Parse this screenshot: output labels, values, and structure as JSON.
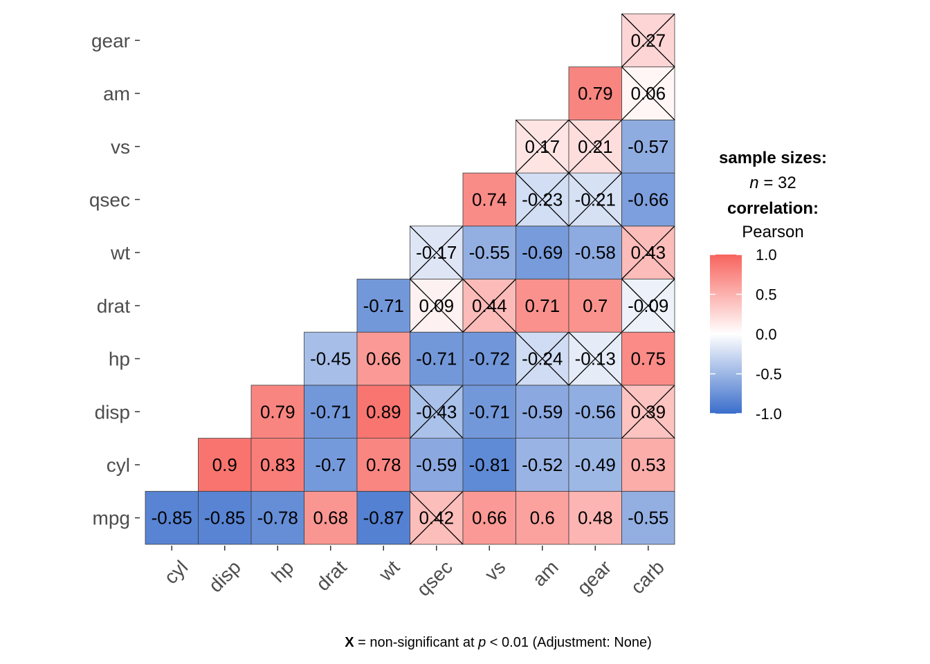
{
  "chart_data": {
    "type": "heatmap",
    "variables": [
      "mpg",
      "cyl",
      "disp",
      "hp",
      "drat",
      "wt",
      "qsec",
      "vs",
      "am",
      "gear",
      "carb"
    ],
    "x_categories": [
      "cyl",
      "disp",
      "hp",
      "drat",
      "wt",
      "qsec",
      "vs",
      "am",
      "gear",
      "carb"
    ],
    "y_categories": [
      "mpg",
      "cyl",
      "disp",
      "hp",
      "drat",
      "wt",
      "qsec",
      "vs",
      "am",
      "gear"
    ],
    "cells": [
      {
        "x": "cyl",
        "y": "mpg",
        "value": -0.85,
        "label": "-0.85",
        "significant": true
      },
      {
        "x": "disp",
        "y": "mpg",
        "value": -0.85,
        "label": "-0.85",
        "significant": true
      },
      {
        "x": "hp",
        "y": "mpg",
        "value": -0.78,
        "label": "-0.78",
        "significant": true
      },
      {
        "x": "drat",
        "y": "mpg",
        "value": 0.68,
        "label": "0.68",
        "significant": true
      },
      {
        "x": "wt",
        "y": "mpg",
        "value": -0.87,
        "label": "-0.87",
        "significant": true
      },
      {
        "x": "qsec",
        "y": "mpg",
        "value": 0.42,
        "label": "0.42",
        "significant": false
      },
      {
        "x": "vs",
        "y": "mpg",
        "value": 0.66,
        "label": "0.66",
        "significant": true
      },
      {
        "x": "am",
        "y": "mpg",
        "value": 0.6,
        "label": "0.6",
        "significant": true
      },
      {
        "x": "gear",
        "y": "mpg",
        "value": 0.48,
        "label": "0.48",
        "significant": true
      },
      {
        "x": "carb",
        "y": "mpg",
        "value": -0.55,
        "label": "-0.55",
        "significant": true
      },
      {
        "x": "disp",
        "y": "cyl",
        "value": 0.9,
        "label": "0.9",
        "significant": true
      },
      {
        "x": "hp",
        "y": "cyl",
        "value": 0.83,
        "label": "0.83",
        "significant": true
      },
      {
        "x": "drat",
        "y": "cyl",
        "value": -0.7,
        "label": "-0.7",
        "significant": true
      },
      {
        "x": "wt",
        "y": "cyl",
        "value": 0.78,
        "label": "0.78",
        "significant": true
      },
      {
        "x": "qsec",
        "y": "cyl",
        "value": -0.59,
        "label": "-0.59",
        "significant": true
      },
      {
        "x": "vs",
        "y": "cyl",
        "value": -0.81,
        "label": "-0.81",
        "significant": true
      },
      {
        "x": "am",
        "y": "cyl",
        "value": -0.52,
        "label": "-0.52",
        "significant": true
      },
      {
        "x": "gear",
        "y": "cyl",
        "value": -0.49,
        "label": "-0.49",
        "significant": true
      },
      {
        "x": "carb",
        "y": "cyl",
        "value": 0.53,
        "label": "0.53",
        "significant": true
      },
      {
        "x": "hp",
        "y": "disp",
        "value": 0.79,
        "label": "0.79",
        "significant": true
      },
      {
        "x": "drat",
        "y": "disp",
        "value": -0.71,
        "label": "-0.71",
        "significant": true
      },
      {
        "x": "wt",
        "y": "disp",
        "value": 0.89,
        "label": "0.89",
        "significant": true
      },
      {
        "x": "qsec",
        "y": "disp",
        "value": -0.43,
        "label": "-0.43",
        "significant": false
      },
      {
        "x": "vs",
        "y": "disp",
        "value": -0.71,
        "label": "-0.71",
        "significant": true
      },
      {
        "x": "am",
        "y": "disp",
        "value": -0.59,
        "label": "-0.59",
        "significant": true
      },
      {
        "x": "gear",
        "y": "disp",
        "value": -0.56,
        "label": "-0.56",
        "significant": true
      },
      {
        "x": "carb",
        "y": "disp",
        "value": 0.39,
        "label": "0.39",
        "significant": false
      },
      {
        "x": "drat",
        "y": "hp",
        "value": -0.45,
        "label": "-0.45",
        "significant": true
      },
      {
        "x": "wt",
        "y": "hp",
        "value": 0.66,
        "label": "0.66",
        "significant": true
      },
      {
        "x": "qsec",
        "y": "hp",
        "value": -0.71,
        "label": "-0.71",
        "significant": true
      },
      {
        "x": "vs",
        "y": "hp",
        "value": -0.72,
        "label": "-0.72",
        "significant": true
      },
      {
        "x": "am",
        "y": "hp",
        "value": -0.24,
        "label": "-0.24",
        "significant": false
      },
      {
        "x": "gear",
        "y": "hp",
        "value": -0.13,
        "label": "-0.13",
        "significant": false
      },
      {
        "x": "carb",
        "y": "hp",
        "value": 0.75,
        "label": "0.75",
        "significant": true
      },
      {
        "x": "wt",
        "y": "drat",
        "value": -0.71,
        "label": "-0.71",
        "significant": true
      },
      {
        "x": "qsec",
        "y": "drat",
        "value": 0.09,
        "label": "0.09",
        "significant": false
      },
      {
        "x": "vs",
        "y": "drat",
        "value": 0.44,
        "label": "0.44",
        "significant": false
      },
      {
        "x": "am",
        "y": "drat",
        "value": 0.71,
        "label": "0.71",
        "significant": true
      },
      {
        "x": "gear",
        "y": "drat",
        "value": 0.7,
        "label": "0.7",
        "significant": true
      },
      {
        "x": "carb",
        "y": "drat",
        "value": -0.09,
        "label": "-0.09",
        "significant": false
      },
      {
        "x": "qsec",
        "y": "wt",
        "value": -0.17,
        "label": "-0.17",
        "significant": false
      },
      {
        "x": "vs",
        "y": "wt",
        "value": -0.55,
        "label": "-0.55",
        "significant": true
      },
      {
        "x": "am",
        "y": "wt",
        "value": -0.69,
        "label": "-0.69",
        "significant": true
      },
      {
        "x": "gear",
        "y": "wt",
        "value": -0.58,
        "label": "-0.58",
        "significant": true
      },
      {
        "x": "carb",
        "y": "wt",
        "value": 0.43,
        "label": "0.43",
        "significant": false
      },
      {
        "x": "vs",
        "y": "qsec",
        "value": 0.74,
        "label": "0.74",
        "significant": true
      },
      {
        "x": "am",
        "y": "qsec",
        "value": -0.23,
        "label": "-0.23",
        "significant": false
      },
      {
        "x": "gear",
        "y": "qsec",
        "value": -0.21,
        "label": "-0.21",
        "significant": false
      },
      {
        "x": "carb",
        "y": "qsec",
        "value": -0.66,
        "label": "-0.66",
        "significant": true
      },
      {
        "x": "am",
        "y": "vs",
        "value": 0.17,
        "label": "0.17",
        "significant": false
      },
      {
        "x": "gear",
        "y": "vs",
        "value": 0.21,
        "label": "0.21",
        "significant": false
      },
      {
        "x": "carb",
        "y": "vs",
        "value": -0.57,
        "label": "-0.57",
        "significant": true
      },
      {
        "x": "gear",
        "y": "am",
        "value": 0.79,
        "label": "0.79",
        "significant": true
      },
      {
        "x": "carb",
        "y": "am",
        "value": 0.06,
        "label": "0.06",
        "significant": false
      },
      {
        "x": "carb",
        "y": "gear",
        "value": 0.27,
        "label": "0.27",
        "significant": false
      }
    ],
    "color_scale": {
      "low": "#3a6ecb",
      "mid": "#ffffff",
      "high": "#f8645e",
      "limits": [
        -1.0,
        1.0
      ]
    },
    "legend": {
      "placement": "right",
      "sample_sizes_title": "sample sizes:",
      "n_label": "n",
      "n_value_text": " = 32",
      "correlation_title": "correlation:",
      "method": "Pearson",
      "ticks": [
        1.0,
        0.5,
        0.0,
        -0.5,
        -1.0
      ],
      "tick_labels": [
        "1.0",
        "0.5",
        "0.0",
        "-0.5",
        "-1.0"
      ]
    },
    "caption": {
      "x_mark": "X",
      "text_1": " = non-significant at ",
      "p_symbol": "p",
      "text_2": " < 0.01 (Adjustment: None)"
    },
    "grid": false
  }
}
